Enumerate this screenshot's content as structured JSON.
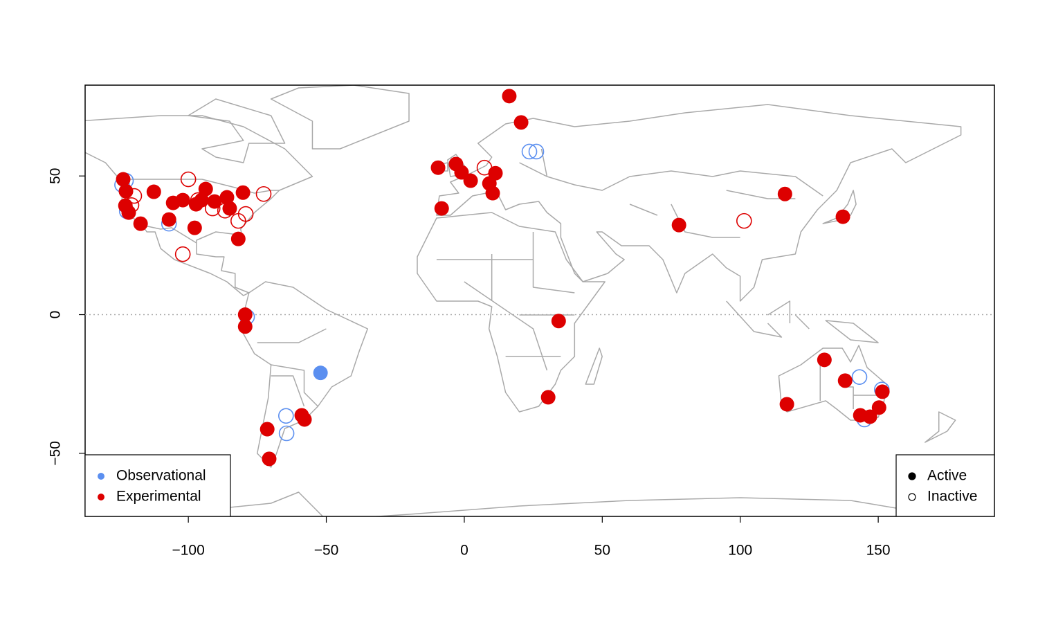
{
  "chart_data": {
    "type": "scatter",
    "xlim": [
      -137.4,
      192.1
    ],
    "ylim": [
      -72.75,
      82.75
    ],
    "xticks": [
      {
        "value": -100,
        "label": "−100"
      },
      {
        "value": -50,
        "label": "−50"
      },
      0,
      50,
      100,
      150
    ],
    "yticks": [
      {
        "value": -50,
        "label": "−50"
      },
      0,
      50
    ],
    "hline": 0,
    "legend": "bottomleft",
    "status_legend": [
      "Active",
      "Inactive"
    ],
    "status_legend_position": "bottomright",
    "series": [
      {
        "name": "Observational",
        "color": "#5b8ff0",
        "x": [
          -52.1,
          23.6,
          26.1,
          143.2,
          151.3,
          145,
          -64.6,
          -64.4,
          -78.7,
          -107,
          -124,
          -122.3,
          -122.6
        ],
        "y": [
          -21,
          58.8,
          58.8,
          -22.5,
          -27,
          -37.8,
          -36.5,
          -42.8,
          -0.8,
          32.8,
          46.8,
          37.3,
          48.3
        ],
        "active": [
          true,
          false,
          false,
          false,
          false,
          false,
          false,
          false,
          false,
          false,
          false,
          false,
          false
        ]
      },
      {
        "name": "Experimental",
        "color": "#dd0000",
        "x": [
          16.3,
          20.6,
          -9.5,
          -3,
          -1,
          2.3,
          9.1,
          11.3,
          10.3,
          -8.2,
          34.2,
          30.4,
          77.8,
          116.2,
          137.2,
          130.5,
          138,
          116.9,
          143.5,
          147,
          150.3,
          151.5,
          -79.4,
          -79.4,
          -58.9,
          -57.9,
          -71.4,
          -70.7,
          -123.6,
          -122.6,
          -122.8,
          -121.6,
          -117.3,
          -112.5,
          -107,
          -105.5,
          -102,
          -97.7,
          -97.2,
          -93.7,
          -95.2,
          -90.5,
          -86,
          -85,
          -80.2,
          -81.9,
          7.3,
          101.4,
          -102,
          -72.7,
          -79.2,
          -81.9,
          -119.6,
          -120.6,
          -100,
          -91.2,
          -86.7,
          -96.5
        ],
        "y": [
          78.8,
          69.3,
          53,
          54.3,
          51.3,
          48.3,
          47.3,
          51,
          43.8,
          38.3,
          -2.3,
          -29.8,
          32.3,
          43.5,
          35.3,
          -16.3,
          -23.8,
          -32.3,
          -36.3,
          -36.8,
          -33.5,
          -27.8,
          0,
          -4.3,
          -36.3,
          -37.8,
          -41.3,
          -52,
          48.8,
          44.5,
          39.3,
          36.8,
          32.8,
          44.3,
          34.3,
          40.3,
          41.3,
          31.3,
          39.8,
          45.3,
          41.3,
          40.8,
          42.3,
          38.3,
          44,
          27.3,
          53,
          33.8,
          21.8,
          43.5,
          36.3,
          33.8,
          42.8,
          39.5,
          48.8,
          38.3,
          37.5,
          41.3
        ],
        "active": [
          true,
          true,
          true,
          true,
          true,
          true,
          true,
          true,
          true,
          true,
          true,
          true,
          true,
          true,
          true,
          true,
          true,
          true,
          true,
          true,
          true,
          true,
          true,
          true,
          true,
          true,
          true,
          true,
          true,
          true,
          true,
          true,
          true,
          true,
          true,
          true,
          true,
          true,
          true,
          true,
          true,
          true,
          true,
          true,
          true,
          true,
          false,
          false,
          false,
          false,
          false,
          false,
          false,
          false,
          false,
          false,
          false,
          false
        ]
      }
    ]
  }
}
